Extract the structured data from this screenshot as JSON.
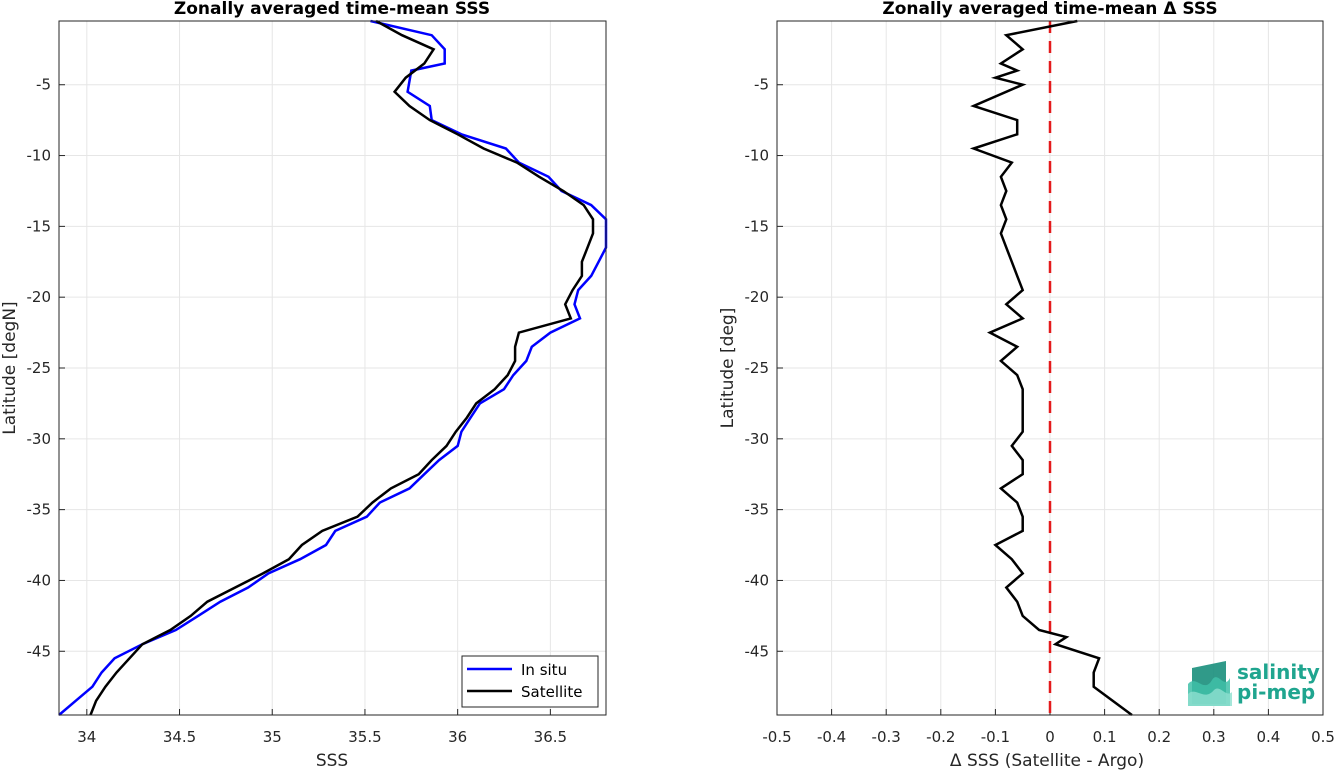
{
  "chart_data": [
    {
      "type": "line",
      "title": "Zonally averaged time-mean SSS",
      "xlabel": "SSS",
      "ylabel": "Latitude [degN]",
      "xlim": [
        33.85,
        36.8
      ],
      "ylim": [
        -49.5,
        -0.5
      ],
      "xticks": [
        34,
        34.5,
        35,
        35.5,
        36,
        36.5
      ],
      "xtick_labels": [
        "34",
        "34.5",
        "35",
        "35.5",
        "36",
        "36.5"
      ],
      "yticks": [
        -5,
        -10,
        -15,
        -20,
        -25,
        -30,
        -35,
        -40,
        -45
      ],
      "ytick_labels": [
        "-5",
        "-10",
        "-15",
        "-20",
        "-25",
        "-30",
        "-35",
        "-40",
        "-45"
      ],
      "grid": true,
      "legend_position": "bottom-right",
      "series": [
        {
          "name": "In situ",
          "color": "#0000ff",
          "points": [
            [
              35.53,
              -0.5
            ],
            [
              35.86,
              -1.5
            ],
            [
              35.93,
              -2.5
            ],
            [
              35.93,
              -3.5
            ],
            [
              35.75,
              -4
            ],
            [
              35.73,
              -5.5
            ],
            [
              35.85,
              -6.5
            ],
            [
              35.86,
              -7.5
            ],
            [
              36.02,
              -8.5
            ],
            [
              36.26,
              -9.5
            ],
            [
              36.33,
              -10.5
            ],
            [
              36.49,
              -11.5
            ],
            [
              36.56,
              -12.5
            ],
            [
              36.72,
              -13.5
            ],
            [
              36.8,
              -14.5
            ],
            [
              36.8,
              -16.5
            ],
            [
              36.76,
              -17.5
            ],
            [
              36.72,
              -18.5
            ],
            [
              36.65,
              -19.5
            ],
            [
              36.63,
              -20.5
            ],
            [
              36.66,
              -21.5
            ],
            [
              36.5,
              -22.5
            ],
            [
              36.4,
              -23.5
            ],
            [
              36.37,
              -24.5
            ],
            [
              36.3,
              -25.5
            ],
            [
              36.25,
              -26.5
            ],
            [
              36.12,
              -27.5
            ],
            [
              36.07,
              -28.5
            ],
            [
              36.02,
              -29.5
            ],
            [
              36.0,
              -30.5
            ],
            [
              35.9,
              -31.5
            ],
            [
              35.82,
              -32.5
            ],
            [
              35.74,
              -33.5
            ],
            [
              35.58,
              -34.5
            ],
            [
              35.51,
              -35.5
            ],
            [
              35.34,
              -36.5
            ],
            [
              35.29,
              -37.5
            ],
            [
              35.15,
              -38.5
            ],
            [
              34.98,
              -39.5
            ],
            [
              34.87,
              -40.5
            ],
            [
              34.72,
              -41.5
            ],
            [
              34.6,
              -42.5
            ],
            [
              34.48,
              -43.5
            ],
            [
              34.3,
              -44.5
            ],
            [
              34.15,
              -45.5
            ],
            [
              34.08,
              -46.5
            ],
            [
              34.03,
              -47.5
            ],
            [
              33.94,
              -48.5
            ],
            [
              33.85,
              -49.5
            ]
          ]
        },
        {
          "name": "Satellite",
          "color": "#000000",
          "points": [
            [
              35.56,
              -0.5
            ],
            [
              35.7,
              -1.5
            ],
            [
              35.87,
              -2.5
            ],
            [
              35.82,
              -3.5
            ],
            [
              35.72,
              -4.5
            ],
            [
              35.66,
              -5.5
            ],
            [
              35.74,
              -6.5
            ],
            [
              35.85,
              -7.5
            ],
            [
              36.0,
              -8.5
            ],
            [
              36.14,
              -9.5
            ],
            [
              36.32,
              -10.5
            ],
            [
              36.44,
              -11.5
            ],
            [
              36.57,
              -12.5
            ],
            [
              36.68,
              -13.5
            ],
            [
              36.73,
              -14.5
            ],
            [
              36.73,
              -15.5
            ],
            [
              36.7,
              -16.5
            ],
            [
              36.67,
              -17.5
            ],
            [
              36.67,
              -18.5
            ],
            [
              36.62,
              -19.5
            ],
            [
              36.58,
              -20.5
            ],
            [
              36.61,
              -21.5
            ],
            [
              36.33,
              -22.5
            ],
            [
              36.31,
              -23.5
            ],
            [
              36.31,
              -24.5
            ],
            [
              36.27,
              -25.5
            ],
            [
              36.2,
              -26.5
            ],
            [
              36.1,
              -27.5
            ],
            [
              36.05,
              -28.5
            ],
            [
              35.99,
              -29.5
            ],
            [
              35.94,
              -30.5
            ],
            [
              35.86,
              -31.5
            ],
            [
              35.79,
              -32.5
            ],
            [
              35.64,
              -33.5
            ],
            [
              35.54,
              -34.5
            ],
            [
              35.46,
              -35.5
            ],
            [
              35.27,
              -36.5
            ],
            [
              35.16,
              -37.5
            ],
            [
              35.09,
              -38.5
            ],
            [
              34.95,
              -39.5
            ],
            [
              34.8,
              -40.5
            ],
            [
              34.65,
              -41.5
            ],
            [
              34.56,
              -42.5
            ],
            [
              34.45,
              -43.5
            ],
            [
              34.3,
              -44.5
            ],
            [
              34.23,
              -45.5
            ],
            [
              34.16,
              -46.5
            ],
            [
              34.1,
              -47.5
            ],
            [
              34.05,
              -48.5
            ],
            [
              34.02,
              -49.5
            ]
          ]
        }
      ]
    },
    {
      "type": "line",
      "title": "Zonally averaged time-mean Δ SSS",
      "xlabel": "Δ SSS (Satellite - Argo)",
      "ylabel": "Latitude [deg]",
      "xlim": [
        -0.5,
        0.5
      ],
      "ylim": [
        -49.5,
        -0.5
      ],
      "xticks": [
        -0.5,
        -0.4,
        -0.3,
        -0.2,
        -0.1,
        0,
        0.1,
        0.2,
        0.3,
        0.4,
        0.5
      ],
      "xtick_labels": [
        "-0.5",
        "-0.4",
        "-0.3",
        "-0.2",
        "-0.1",
        "0",
        "0.1",
        "0.2",
        "0.3",
        "0.4",
        "0.5"
      ],
      "yticks": [
        -5,
        -10,
        -15,
        -20,
        -25,
        -30,
        -35,
        -40,
        -45
      ],
      "ytick_labels": [
        "-5",
        "-10",
        "-15",
        "-20",
        "-25",
        "-30",
        "-35",
        "-40",
        "-45"
      ],
      "grid": true,
      "reference_line": {
        "x": 0,
        "color": "#e41a1c",
        "style": "dashed"
      },
      "series": [
        {
          "color": "#000000",
          "points": [
            [
              0.05,
              -0.5
            ],
            [
              -0.08,
              -1.5
            ],
            [
              -0.05,
              -2.5
            ],
            [
              -0.09,
              -3.5
            ],
            [
              -0.06,
              -4
            ],
            [
              -0.1,
              -4.5
            ],
            [
              -0.05,
              -5
            ],
            [
              -0.14,
              -6.5
            ],
            [
              -0.06,
              -7.5
            ],
            [
              -0.06,
              -8.5
            ],
            [
              -0.14,
              -9.5
            ],
            [
              -0.07,
              -10.5
            ],
            [
              -0.09,
              -11.5
            ],
            [
              -0.08,
              -12.5
            ],
            [
              -0.09,
              -13.5
            ],
            [
              -0.08,
              -14.5
            ],
            [
              -0.09,
              -15.5
            ],
            [
              -0.08,
              -16.5
            ],
            [
              -0.07,
              -17.5
            ],
            [
              -0.06,
              -18.5
            ],
            [
              -0.05,
              -19.5
            ],
            [
              -0.08,
              -20.5
            ],
            [
              -0.05,
              -21.5
            ],
            [
              -0.11,
              -22.5
            ],
            [
              -0.06,
              -23.5
            ],
            [
              -0.09,
              -24.5
            ],
            [
              -0.06,
              -25.5
            ],
            [
              -0.05,
              -26.5
            ],
            [
              -0.05,
              -27.5
            ],
            [
              -0.05,
              -28.5
            ],
            [
              -0.05,
              -29.5
            ],
            [
              -0.07,
              -30.5
            ],
            [
              -0.05,
              -31.5
            ],
            [
              -0.05,
              -32.5
            ],
            [
              -0.09,
              -33.5
            ],
            [
              -0.06,
              -34.5
            ],
            [
              -0.05,
              -35.5
            ],
            [
              -0.05,
              -36.5
            ],
            [
              -0.1,
              -37.5
            ],
            [
              -0.07,
              -38.5
            ],
            [
              -0.05,
              -39.5
            ],
            [
              -0.08,
              -40.5
            ],
            [
              -0.06,
              -41.5
            ],
            [
              -0.05,
              -42.5
            ],
            [
              -0.02,
              -43.5
            ],
            [
              0.03,
              -44
            ],
            [
              0.01,
              -44.5
            ],
            [
              0.09,
              -45.5
            ],
            [
              0.08,
              -46.5
            ],
            [
              0.08,
              -47.5
            ],
            [
              0.15,
              -49.5
            ]
          ]
        }
      ]
    }
  ],
  "legend": {
    "items": [
      {
        "label": "In situ",
        "color": "#0000ff"
      },
      {
        "label": "Satellite",
        "color": "#000000"
      }
    ]
  },
  "logo": {
    "line1": "salinity",
    "line2": "pi-mep",
    "color": "#1fa58f"
  }
}
